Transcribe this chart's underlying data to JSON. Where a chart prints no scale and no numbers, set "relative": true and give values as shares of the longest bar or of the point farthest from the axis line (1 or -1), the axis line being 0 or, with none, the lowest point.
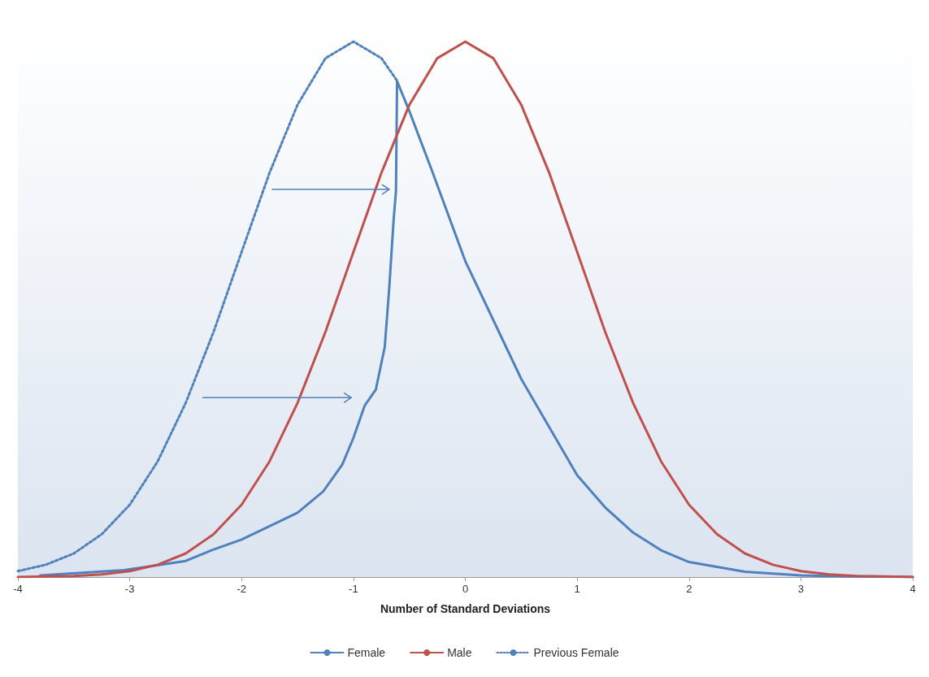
{
  "chart_data": {
    "type": "line",
    "xlabel": "Number of Standard Deviations",
    "relative": true,
    "xlim": [
      -4,
      4
    ],
    "xticks": [
      -4,
      -3,
      -2,
      -1,
      0,
      1,
      2,
      3,
      4
    ],
    "tick_labels": "x",
    "grid": false,
    "legend": "bottom",
    "marker": "none",
    "series": [
      {
        "name": "Female",
        "color": "#4f81bd",
        "line_style": "solid",
        "x": [
          -3.8,
          -3.05,
          -2.5,
          -2.27,
          -2,
          -1.7,
          -1.5,
          -1.27,
          -1.1,
          -1,
          -0.9,
          -0.8,
          -0.72,
          -0.68,
          -0.64,
          -0.62,
          -0.61,
          -0.5,
          -0.3,
          0,
          0.25,
          0.5,
          0.75,
          1,
          1.25,
          1.5,
          1.75,
          2,
          2.5,
          3,
          3.5,
          4
        ],
        "values": [
          0.003,
          0.013,
          0.03,
          0.05,
          0.07,
          0.1,
          0.12,
          0.16,
          0.21,
          0.26,
          0.32,
          0.35,
          0.43,
          0.54,
          0.67,
          0.72,
          0.926,
          0.87,
          0.76,
          0.59,
          0.48,
          0.37,
          0.28,
          0.19,
          0.13,
          0.083,
          0.05,
          0.028,
          0.01,
          0.003,
          0.001,
          0
        ]
      },
      {
        "name": "Male",
        "color": "#c0504d",
        "line_style": "solid",
        "x": [
          -4,
          -3.75,
          -3.5,
          -3.25,
          -3,
          -2.75,
          -2.5,
          -2.25,
          -2,
          -1.75,
          -1.5,
          -1.25,
          -1,
          -0.75,
          -0.5,
          -0.25,
          0,
          0.25,
          0.5,
          0.75,
          1,
          1.25,
          1.5,
          1.75,
          2,
          2.25,
          2.5,
          2.75,
          3,
          3.25,
          3.5,
          3.75,
          4
        ],
        "values": [
          0,
          0.001,
          0.002,
          0.005,
          0.011,
          0.023,
          0.044,
          0.08,
          0.135,
          0.216,
          0.325,
          0.458,
          0.607,
          0.755,
          0.882,
          0.969,
          1,
          0.969,
          0.882,
          0.755,
          0.607,
          0.458,
          0.325,
          0.216,
          0.135,
          0.08,
          0.044,
          0.023,
          0.011,
          0.005,
          0.002,
          0.001,
          0
        ]
      },
      {
        "name": "Previous Female",
        "color": "#4f81bd",
        "line_style": "dotted",
        "x": [
          -4,
          -3.75,
          -3.5,
          -3.25,
          -3,
          -2.75,
          -2.5,
          -2.25,
          -2,
          -1.75,
          -1.5,
          -1.25,
          -1,
          -0.75,
          -0.61
        ],
        "values": [
          0.011,
          0.023,
          0.044,
          0.08,
          0.135,
          0.216,
          0.325,
          0.458,
          0.607,
          0.755,
          0.882,
          0.969,
          1,
          0.969,
          0.927
        ]
      }
    ]
  }
}
